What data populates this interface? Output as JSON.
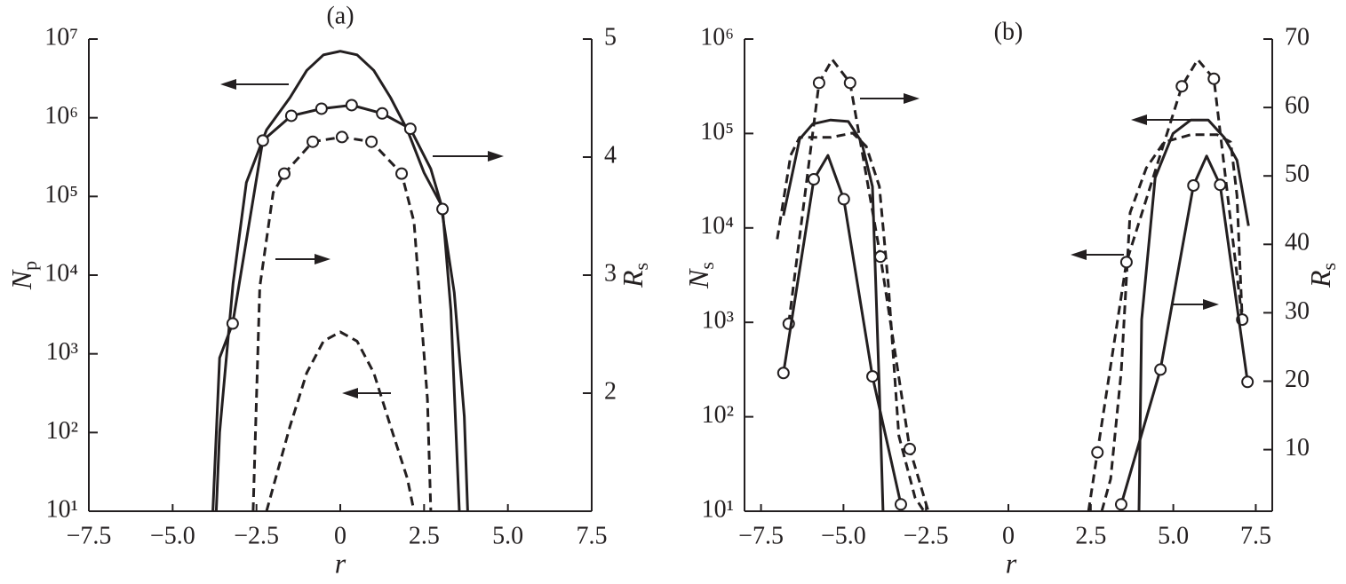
{
  "chart_data": [
    {
      "type": "line",
      "title": "(a)",
      "xlabel": "r",
      "ylabel": "N",
      "ylabel_sub": "p",
      "y2label": "R",
      "y2label_sub": "s",
      "xlim": [
        -7.5,
        7.5
      ],
      "xticks": [
        {
          "value": -7.5,
          "label": "−7.5"
        },
        {
          "value": -5,
          "label": "−5.0"
        },
        {
          "value": -2.5,
          "label": "−2.5"
        },
        0,
        2.5,
        {
          "value": 5,
          "label": "5.0"
        },
        7.5
      ],
      "ylim": [
        10,
        10000000
      ],
      "ylog": true,
      "yticks": [
        {
          "value": 10,
          "label": "10¹"
        },
        {
          "value": 100,
          "label": "10²"
        },
        {
          "value": 1000,
          "label": "10³"
        },
        {
          "value": 10000,
          "label": "10⁴"
        },
        {
          "value": 100000,
          "label": "10⁵"
        },
        {
          "value": 1000000,
          "label": "10⁶"
        },
        {
          "value": 10000000,
          "label": "10⁷"
        }
      ],
      "y2lim": [
        1,
        5
      ],
      "y2ticks": [
        2,
        3,
        4,
        5
      ],
      "series": [
        {
          "axis": "y",
          "style": "solid",
          "marker": "none",
          "color": "#231f20",
          "x": [
            -3.7,
            -3.6,
            -3.2,
            -2.8,
            -2.2,
            -1.5,
            -1.0,
            -0.5,
            0,
            0.5,
            1.0,
            1.5,
            2.0,
            2.5,
            3.0,
            3.4,
            3.7,
            3.8
          ],
          "values": [
            10,
            100,
            7800,
            150000,
            700000,
            1800000,
            4000000,
            6300000,
            7000000,
            6300000,
            4000000,
            1800000,
            700000,
            200000,
            80000,
            6000,
            160,
            10
          ]
        },
        {
          "axis": "y2",
          "style": "solid",
          "marker": "none",
          "color": "#231f20",
          "x": [
            -3.8,
            -3.6,
            -3.21,
            -2.31,
            -1.46,
            -0.56,
            0.34,
            1.25,
            2.09,
            2.7,
            3.05,
            3.3,
            3.55
          ],
          "values": [
            1.0,
            2.3,
            2.59,
            4.14,
            4.35,
            4.41,
            4.44,
            4.37,
            4.24,
            3.9,
            3.56,
            2.7,
            1.0
          ]
        },
        {
          "axis": "y2",
          "style": "none",
          "marker": "circle",
          "color": "#231f20",
          "x": [
            -3.21,
            -2.31,
            -1.46,
            -0.56,
            0.34,
            1.25,
            2.09,
            3.05
          ],
          "values": [
            2.59,
            4.14,
            4.35,
            4.41,
            4.44,
            4.37,
            4.24,
            3.56
          ]
        },
        {
          "axis": "y2",
          "style": "dashed",
          "marker": "none",
          "color": "#231f20",
          "x": [
            -2.6,
            -2.4,
            -2.0,
            -1.67,
            -0.82,
            0.05,
            0.93,
            1.83,
            2.2,
            2.6,
            2.7
          ],
          "values": [
            1.0,
            2.9,
            3.7,
            3.86,
            4.13,
            4.17,
            4.13,
            3.86,
            3.45,
            1.95,
            1.0
          ]
        },
        {
          "axis": "y2",
          "style": "none",
          "marker": "circle",
          "color": "#231f20",
          "x": [
            -1.67,
            -0.82,
            0.05,
            0.93,
            1.83
          ],
          "values": [
            3.86,
            4.13,
            4.17,
            4.13,
            3.86
          ]
        },
        {
          "axis": "y",
          "style": "dashed",
          "marker": "none",
          "color": "#231f20",
          "x": [
            -2.2,
            -1.5,
            -1.0,
            -0.5,
            0,
            0.5,
            1.0,
            1.5,
            2.0,
            2.2
          ],
          "values": [
            10,
            120,
            575,
            1450,
            1900,
            1450,
            575,
            120,
            26,
            10
          ]
        }
      ]
    },
    {
      "type": "line",
      "title": "(b)",
      "xlabel": "r",
      "ylabel": "N",
      "ylabel_sub": "s",
      "y2label": "R",
      "y2label_sub": "s",
      "xlim": [
        -8,
        8
      ],
      "xticks": [
        {
          "value": -7.5,
          "label": "−7.5"
        },
        {
          "value": -5,
          "label": "−5.0"
        },
        {
          "value": -2.5,
          "label": "−2.5"
        },
        0,
        2.5,
        {
          "value": 5,
          "label": "5.0"
        },
        7.5
      ],
      "ylim": [
        10,
        1000000
      ],
      "ylog": true,
      "yticks": [
        {
          "value": 10,
          "label": "10¹"
        },
        {
          "value": 100,
          "label": "10²"
        },
        {
          "value": 1000,
          "label": "10³"
        },
        {
          "value": 10000,
          "label": "10⁴"
        },
        {
          "value": 100000,
          "label": "10⁵"
        },
        {
          "value": 1000000,
          "label": "10⁶"
        }
      ],
      "y2lim": [
        1,
        70
      ],
      "y2ticks": [
        10,
        20,
        30,
        40,
        50,
        60,
        70
      ],
      "series": [
        {
          "axis": "y",
          "style": "solid",
          "marker": "none",
          "color": "#231f20",
          "x": [
            -6.82,
            -6.33,
            -5.93,
            -5.39,
            -4.85,
            -4.45,
            -4.12,
            -3.91,
            -3.8,
            null,
            3.96,
            4.04,
            4.45,
            4.99,
            5.53,
            6.06,
            6.55,
            6.93,
            7.28
          ],
          "values": [
            13500,
            87000,
            126000,
            139000,
            134000,
            81000,
            27500,
            190,
            10,
            null,
            10,
            1070,
            34000,
            100000,
            139000,
            139000,
            90000,
            52000,
            10500
          ]
        },
        {
          "axis": "y",
          "style": "dashed",
          "marker": "none",
          "color": "#231f20",
          "x": [
            -7.01,
            -6.6,
            -6.33,
            -5.39,
            -4.72,
            -4.31,
            -3.91,
            -3.64,
            -3.32,
            -2.83,
            -2.56,
            null,
            2.83,
            3.1,
            3.42,
            3.69,
            4.18,
            4.72,
            5.53,
            6.33,
            6.74,
            6.93,
            7.09
          ],
          "values": [
            7600,
            59000,
            91000,
            91000,
            101000,
            73000,
            27500,
            2500,
            63,
            14,
            10,
            null,
            10,
            22,
            300,
            14500,
            43000,
            81000,
            97000,
            97000,
            81000,
            22000,
            1070
          ]
        },
        {
          "axis": "y2",
          "style": "dashed",
          "marker": "none",
          "color": "#231f20",
          "x": [
            -6.66,
            -5.74,
            -5.34,
            -4.8,
            -3.88,
            -2.99,
            -2.43,
            null,
            2.43,
            2.7,
            3.58,
            5.26,
            5.74,
            6.23,
            7.09
          ],
          "values": [
            28.4,
            63.6,
            67.0,
            63.6,
            38.2,
            10.1,
            1.0,
            null,
            1.0,
            9.6,
            37.4,
            63.1,
            67.0,
            64.2,
            29.0
          ]
        },
        {
          "axis": "y2",
          "style": "none",
          "marker": "circle",
          "color": "#231f20",
          "x": [
            -6.66,
            -5.74,
            -4.8,
            -3.88,
            -2.99,
            2.7,
            3.58,
            5.26,
            6.23,
            7.09
          ],
          "values": [
            28.4,
            63.6,
            63.6,
            38.2,
            10.1,
            9.6,
            37.4,
            63.1,
            64.2,
            29.0
          ]
        },
        {
          "axis": "y2",
          "style": "solid",
          "marker": "none",
          "color": "#231f20",
          "x": [
            -6.82,
            -5.9,
            -5.47,
            -4.99,
            -4.12,
            -3.26,
            null,
            3.42,
            4.61,
            5.61,
            6.01,
            6.42,
            7.25
          ],
          "values": [
            21.2,
            49.5,
            53.0,
            46.6,
            20.7,
            2.0,
            null,
            2.0,
            21.7,
            48.6,
            52.9,
            48.7,
            19.9
          ]
        },
        {
          "axis": "y2",
          "style": "none",
          "marker": "circle",
          "color": "#231f20",
          "x": [
            -6.82,
            -5.9,
            -4.99,
            -4.12,
            -3.26,
            3.42,
            4.61,
            5.61,
            6.42,
            7.25
          ],
          "values": [
            21.2,
            49.5,
            46.6,
            20.7,
            2.0,
            2.0,
            21.7,
            48.6,
            48.7,
            19.9
          ]
        }
      ]
    }
  ]
}
